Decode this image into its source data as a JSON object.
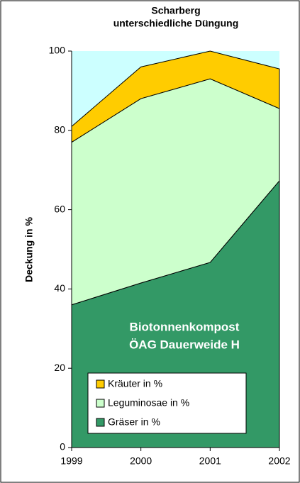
{
  "chart_data": {
    "type": "stacked_area",
    "title": [
      "Scharberg",
      "unterschiedliche Düngung"
    ],
    "ylabel": "Deckung in %",
    "categories": [
      "1999",
      "2000",
      "2001",
      "2002"
    ],
    "series": [
      {
        "name": "Gräser in %",
        "color": "#339966",
        "values": [
          36,
          41.5,
          46.7,
          67.3
        ]
      },
      {
        "name": "Leguminosae in %",
        "color": "#ccffcc",
        "values": [
          41,
          46.5,
          46.3,
          18.2
        ]
      },
      {
        "name": "Kräuter in %",
        "color": "#ffcc00",
        "values": [
          4,
          8,
          7,
          10
        ]
      }
    ],
    "annotation": [
      "Biotonnenkompost",
      "ÖAG Dauerweide H"
    ],
    "ylim": [
      0,
      100
    ],
    "yticks": [
      0,
      20,
      40,
      60,
      80,
      100
    ],
    "plot_background": "#ccffff",
    "legend": "lower left"
  }
}
